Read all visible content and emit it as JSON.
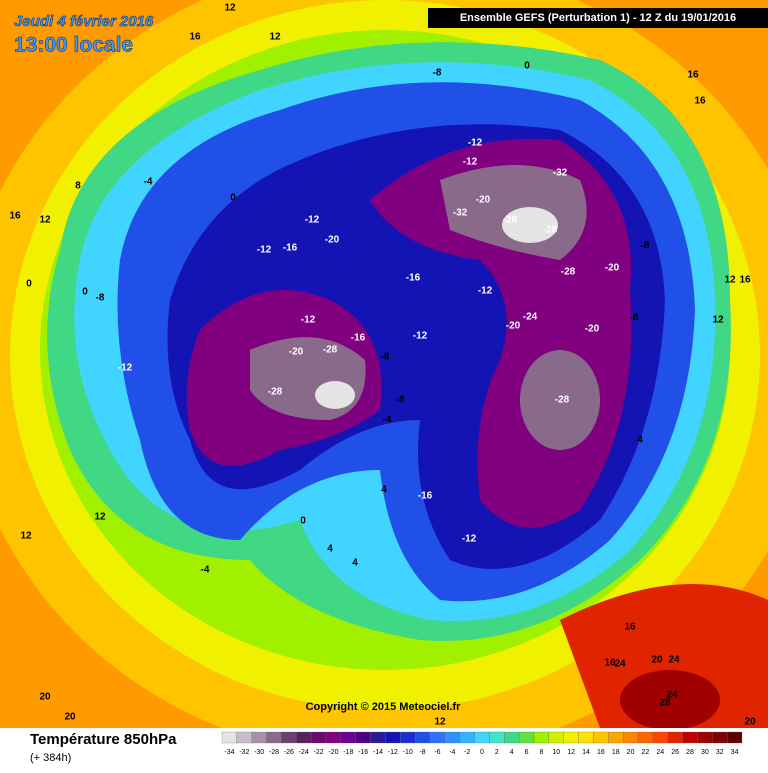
{
  "header": {
    "title": "Jeudi 4 février 2016",
    "subtitle": "13:00 locale",
    "model": "Ensemble GEFS  (Perturbation 1)  -  12 Z du 19/01/2016"
  },
  "map": {
    "credit": "Copyright © 2015 Meteociel.fr",
    "labels": [
      "12",
      "16",
      "12",
      "-8",
      "0",
      "16",
      "16",
      "-12",
      "-12",
      "-32",
      "-20",
      "-32",
      "-28",
      "-28",
      "-28",
      "-20",
      "-8",
      "-20",
      "-16",
      "-12",
      "-12",
      "-16",
      "-12",
      "-12",
      "-12",
      "-24",
      "-20",
      "-20",
      "-8",
      "-16",
      "-8",
      "-20",
      "-28",
      "-28",
      "-28",
      "-12",
      "-8",
      "0",
      "-4",
      "8",
      "16",
      "12",
      "0",
      "0",
      "-4",
      "-8",
      "-16",
      "-12",
      "-4",
      "0",
      "4",
      "4",
      "4",
      "12",
      "12",
      "24",
      "20",
      "24",
      "24",
      "28",
      "16",
      "16",
      "20",
      "20",
      "20",
      "12",
      "4",
      "12",
      "12",
      "16"
    ]
  },
  "legend": {
    "title": "Température 850hPa",
    "subtitle": "(+ 384h)",
    "ticks": [
      -34,
      -32,
      -30,
      -28,
      -26,
      -24,
      -22,
      -20,
      -18,
      -16,
      -14,
      -12,
      -10,
      -8,
      -6,
      -4,
      -2,
      0,
      2,
      4,
      6,
      8,
      10,
      12,
      14,
      16,
      18,
      20,
      22,
      24,
      26,
      28,
      30,
      32,
      34
    ],
    "colors": [
      "#e4e4e4",
      "#c8bcc8",
      "#a890a8",
      "#8a6a8a",
      "#6e406e",
      "#5c205c",
      "#6a0a6a",
      "#800080",
      "#6a0096",
      "#4b0082",
      "#2a1a9a",
      "#1414b4",
      "#1a30d0",
      "#2050e8",
      "#3070ff",
      "#3090ff",
      "#30b4ff",
      "#40d4ff",
      "#40e4c8",
      "#40d884",
      "#64e040",
      "#a0f000",
      "#d0f000",
      "#f0f000",
      "#ffe000",
      "#ffc400",
      "#ffa400",
      "#ff8400",
      "#ff6400",
      "#ff4400",
      "#e02400",
      "#c00000",
      "#a00000",
      "#800000",
      "#600000"
    ]
  }
}
